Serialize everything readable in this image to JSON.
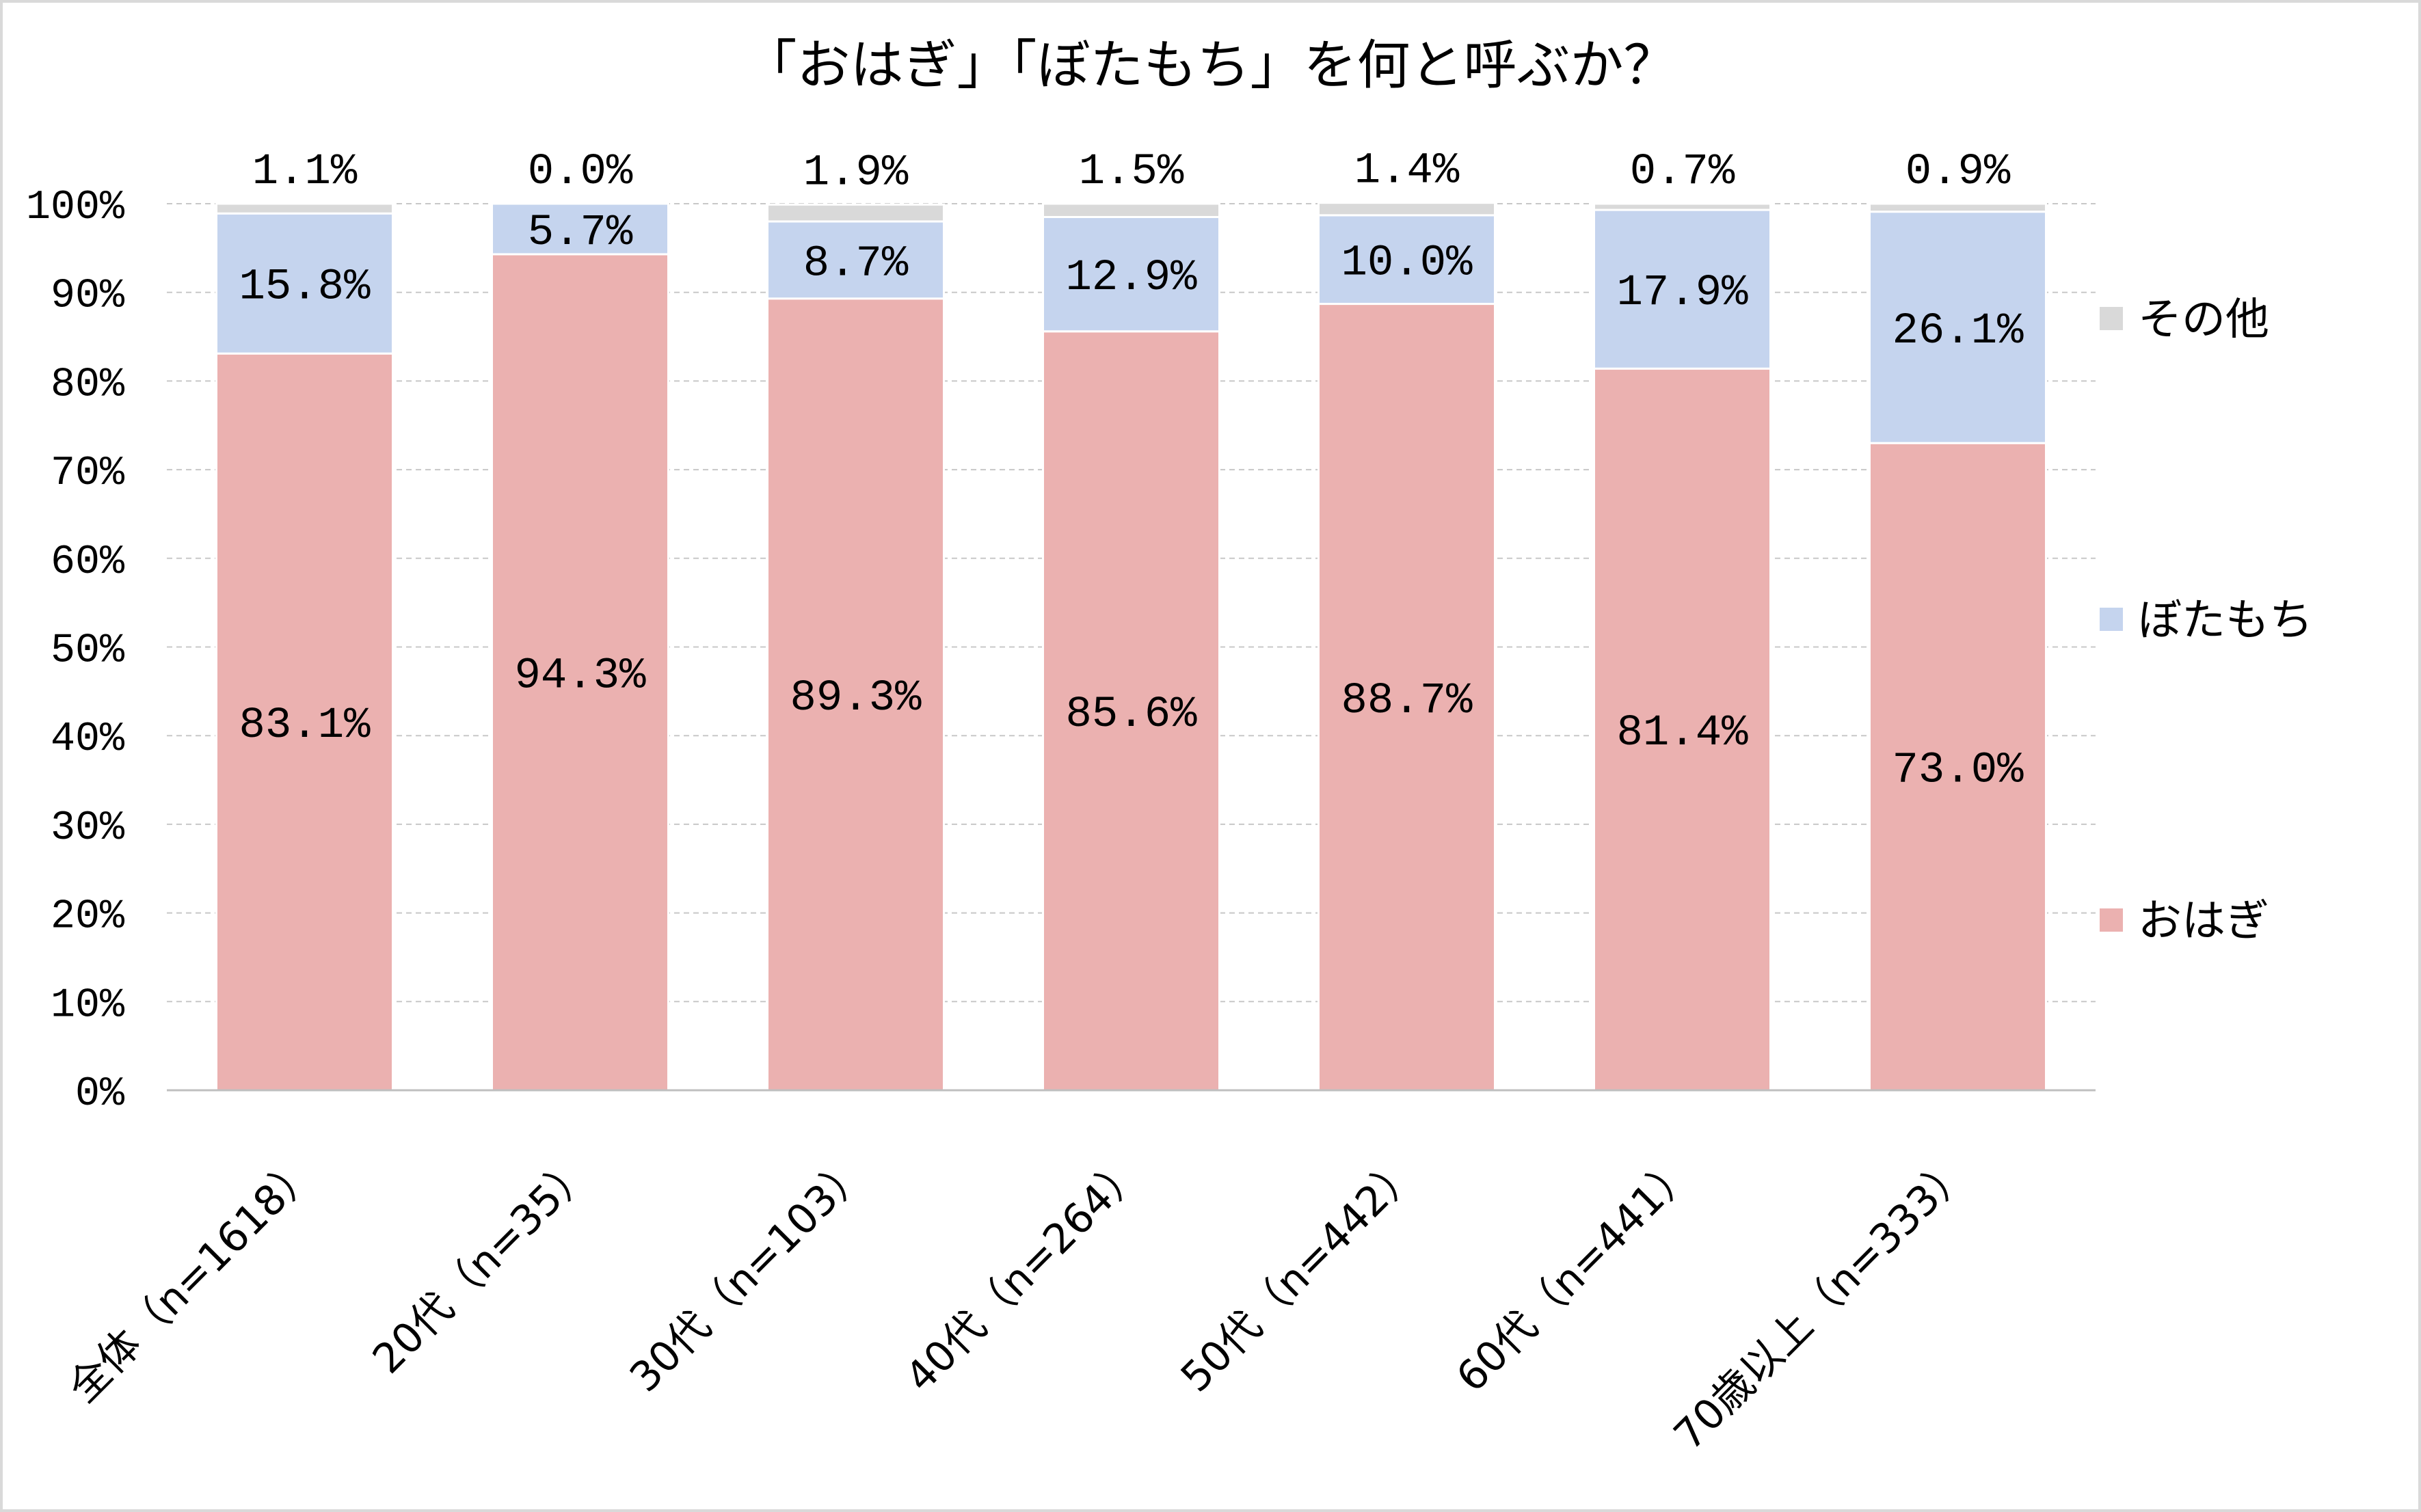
{
  "chart_data": {
    "type": "bar",
    "stacked": true,
    "title": "「おはぎ」「ぼたもち」を何と呼ぶか？",
    "xlabel": "",
    "ylabel": "",
    "ylim": [
      0,
      100
    ],
    "y_ticks": [
      "0%",
      "10%",
      "20%",
      "30%",
      "40%",
      "50%",
      "60%",
      "70%",
      "80%",
      "90%",
      "100%"
    ],
    "grid": "horizontal-dashed",
    "legend_position": "right",
    "categories": [
      "全体（n=1618）",
      "20代（n=35）",
      "30代（n=103）",
      "40代（n=264）",
      "50代（n=442）",
      "60代（n=441）",
      "70歳以上（n=333）"
    ],
    "series": [
      {
        "name": "おはぎ",
        "color": "#ebb1b0",
        "values": [
          83.1,
          94.3,
          89.3,
          85.6,
          88.7,
          81.4,
          73.0
        ],
        "labels": [
          "83.1%",
          "94.3%",
          "89.3%",
          "85.6%",
          "88.7%",
          "81.4%",
          "73.0%"
        ]
      },
      {
        "name": "ぼたもち",
        "color": "#c5d4ee",
        "values": [
          15.8,
          5.7,
          8.7,
          12.9,
          10.0,
          17.9,
          26.1
        ],
        "labels": [
          "15.8%",
          "5.7%",
          "8.7%",
          "12.9%",
          "10.0%",
          "17.9%",
          "26.1%"
        ]
      },
      {
        "name": "その他",
        "color": "#d9d9d9",
        "values": [
          1.1,
          0.0,
          1.9,
          1.5,
          1.4,
          0.7,
          0.9
        ],
        "labels": [
          "1.1%",
          "0.0%",
          "1.9%",
          "1.5%",
          "1.4%",
          "0.7%",
          "0.9%"
        ]
      }
    ],
    "legend_order": [
      "その他",
      "ぼたもち",
      "おはぎ"
    ]
  }
}
